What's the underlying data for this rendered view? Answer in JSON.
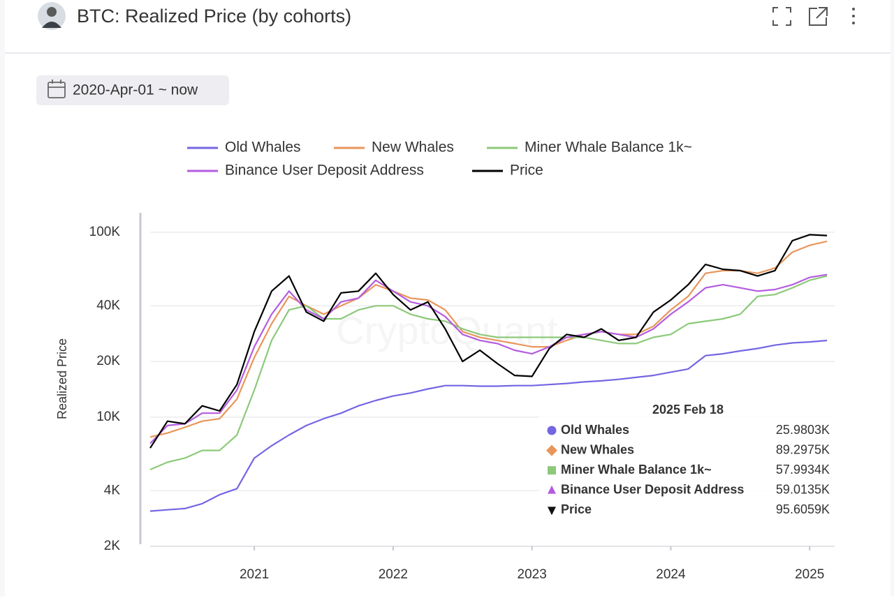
{
  "header": {
    "title": "BTC: Realized Price (by cohorts)"
  },
  "filter": {
    "date_range": "2020-Apr-01 ~ now"
  },
  "chart_data": {
    "type": "line",
    "y_label": "Realized Price",
    "watermark": "CryptoQuant",
    "log_y": true,
    "grid": true,
    "legend": "top",
    "xlim": [
      2020.25,
      2025.18
    ],
    "xticks": [
      2021,
      2022,
      2023,
      2024,
      2025
    ],
    "ylim": [
      2000,
      122000
    ],
    "yticks": [
      {
        "value": 2000,
        "label": "2K"
      },
      {
        "value": 4000,
        "label": "4K"
      },
      {
        "value": 10000,
        "label": "10K"
      },
      {
        "value": 20000,
        "label": "20K"
      },
      {
        "value": 40000,
        "label": "40K"
      },
      {
        "value": 100000,
        "label": "100K"
      }
    ],
    "x": [
      2020.25,
      2020.375,
      2020.5,
      2020.625,
      2020.75,
      2020.875,
      2021.0,
      2021.125,
      2021.25,
      2021.375,
      2021.5,
      2021.625,
      2021.75,
      2021.875,
      2022.0,
      2022.125,
      2022.25,
      2022.375,
      2022.5,
      2022.625,
      2022.75,
      2022.875,
      2023.0,
      2023.125,
      2023.25,
      2023.375,
      2023.5,
      2023.625,
      2023.75,
      2023.875,
      2024.0,
      2024.125,
      2024.25,
      2024.375,
      2024.5,
      2024.625,
      2024.75,
      2024.875,
      2025.0,
      2025.125
    ],
    "series": [
      {
        "name": "Old Whales",
        "color": "#7466e3",
        "values": [
          3100,
          3150,
          3200,
          3400,
          3800,
          4100,
          6000,
          7000,
          8000,
          9000,
          9800,
          10500,
          11500,
          12300,
          13000,
          13500,
          14200,
          14800,
          14800,
          14700,
          14700,
          14800,
          14800,
          15000,
          15200,
          15500,
          15700,
          16000,
          16400,
          16800,
          17500,
          18200,
          21500,
          22000,
          22800,
          23500,
          24500,
          25200,
          25500,
          25980
        ]
      },
      {
        "name": "New Whales",
        "color": "#e8965a",
        "values": [
          7800,
          8200,
          8800,
          9500,
          9800,
          12500,
          21000,
          32000,
          45000,
          40000,
          36000,
          40000,
          44000,
          52000,
          48000,
          44000,
          43000,
          38000,
          29000,
          27000,
          26000,
          25000,
          24000,
          24000,
          26000,
          28000,
          29000,
          28000,
          28000,
          31000,
          38000,
          45000,
          60000,
          62000,
          62000,
          60000,
          64000,
          78000,
          85000,
          89300
        ]
      },
      {
        "name": "Miner Whale Balance 1k~",
        "color": "#8cc97a",
        "values": [
          5200,
          5700,
          6000,
          6600,
          6600,
          8000,
          14000,
          26000,
          38000,
          40000,
          34000,
          34000,
          38000,
          40000,
          40000,
          36000,
          34000,
          33000,
          30000,
          28000,
          27000,
          27000,
          27000,
          27000,
          27000,
          27000,
          26000,
          25000,
          25000,
          27000,
          28000,
          32000,
          33000,
          34000,
          36000,
          45000,
          46000,
          50000,
          55000,
          58000
        ]
      },
      {
        "name": "Binance User Deposit Address",
        "color": "#b45ce0",
        "values": [
          7200,
          9000,
          9200,
          10500,
          10500,
          14000,
          24000,
          36000,
          48000,
          38000,
          34000,
          42000,
          44000,
          55000,
          48000,
          42000,
          40000,
          35000,
          28000,
          26000,
          25000,
          23000,
          22000,
          24000,
          27000,
          28000,
          29000,
          28000,
          27000,
          30000,
          36000,
          42000,
          50000,
          52000,
          50000,
          48000,
          49000,
          52000,
          57000,
          59000
        ]
      },
      {
        "name": "Price",
        "color": "#000000",
        "values": [
          6800,
          9500,
          9200,
          11500,
          10800,
          15000,
          29000,
          48000,
          58000,
          37000,
          33000,
          47000,
          48000,
          60000,
          46000,
          38000,
          42000,
          30000,
          20000,
          23000,
          19500,
          16800,
          16600,
          23500,
          28000,
          27000,
          30000,
          26000,
          27000,
          37000,
          43000,
          52000,
          67000,
          63000,
          62000,
          58000,
          62000,
          90000,
          97000,
          96000
        ]
      }
    ],
    "tooltip": {
      "title": "2025 Feb 18",
      "values": [
        {
          "value": 25980.3,
          "label": "25.9803K"
        },
        {
          "value": 89297.5,
          "label": "89.2975K"
        },
        {
          "value": 57993.4,
          "label": "57.9934K"
        },
        {
          "value": 59013.5,
          "label": "59.0135K"
        },
        {
          "value": 95605.9,
          "label": "95.6059K"
        }
      ]
    }
  }
}
